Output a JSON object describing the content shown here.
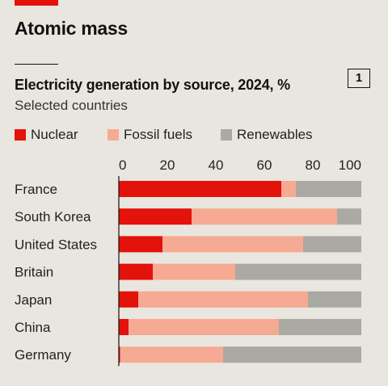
{
  "headline": "Atomic mass",
  "chart_number": "1",
  "colors": {
    "brand_red": "#e3120b",
    "nuclear": "#e3120b",
    "fossil": "#f6aa93",
    "renewables": "#aaaaa2",
    "background": "#e9e6df"
  },
  "chart_data": {
    "type": "bar",
    "orientation": "horizontal",
    "stacked": true,
    "title": "Electricity generation by source, 2024, %",
    "subtitle": "Selected countries",
    "categories": [
      "France",
      "South Korea",
      "United States",
      "Britain",
      "Japan",
      "China",
      "Germany"
    ],
    "series": [
      {
        "name": "Nuclear",
        "color": "#e3120b",
        "values": [
          67,
          30,
          18,
          14,
          8,
          4,
          0.5
        ]
      },
      {
        "name": "Fossil fuels",
        "color": "#f6aa93",
        "values": [
          6,
          60,
          58,
          34,
          70,
          62,
          42.5
        ]
      },
      {
        "name": "Renewables",
        "color": "#aaaaa2",
        "values": [
          27,
          10,
          24,
          52,
          22,
          34,
          57
        ]
      }
    ],
    "xlim": [
      0,
      100
    ],
    "xticks": [
      0,
      20,
      40,
      60,
      80,
      100
    ],
    "xlabel": "",
    "ylabel": "",
    "legend_position": "top",
    "grid": false
  }
}
